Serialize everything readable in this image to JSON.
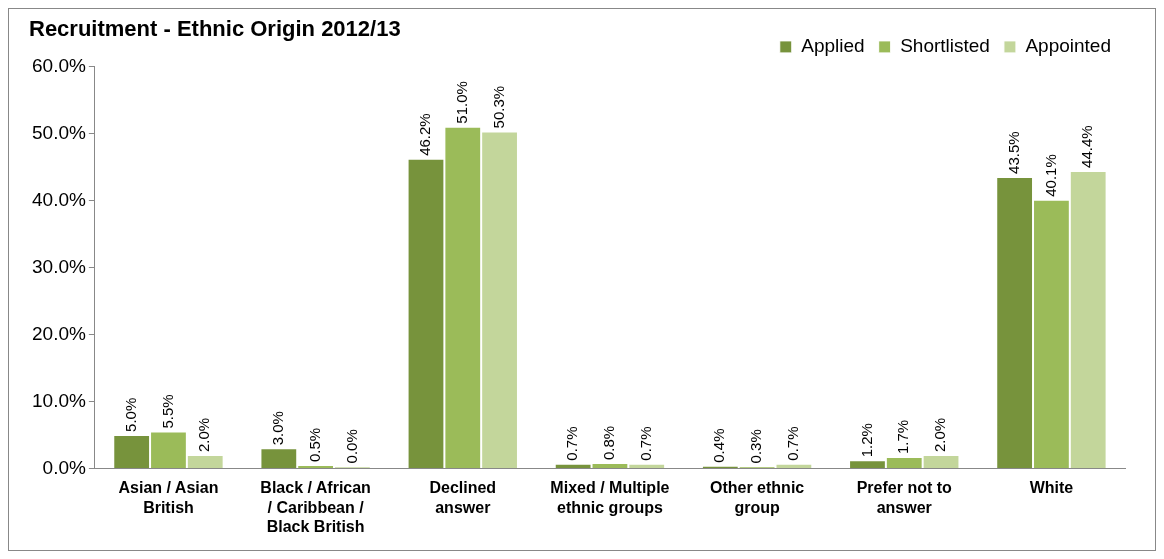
{
  "chart_data": {
    "type": "bar",
    "title": "Recruitment - Ethnic Origin 2012/13",
    "categories": [
      "Asian / Asian British",
      "Black / African / Caribbean / Black British",
      "Declined answer",
      "Mixed / Multiple ethnic groups",
      "Other ethnic group",
      "Prefer not to answer",
      "White"
    ],
    "series": [
      {
        "name": "Applied",
        "color": "#77933c",
        "values": [
          5.0,
          3.0,
          46.2,
          0.7,
          0.4,
          1.2,
          43.5
        ],
        "value_labels": [
          "5.0%",
          "3.0%",
          "46.2%",
          "0.7%",
          "0.4%",
          "1.2%",
          "43.5%"
        ]
      },
      {
        "name": "Shortlisted",
        "color": "#9bbb59",
        "values": [
          5.5,
          0.5,
          51.0,
          0.8,
          0.3,
          1.7,
          40.1
        ],
        "value_labels": [
          "5.5%",
          "0.5%",
          "51.0%",
          "0.8%",
          "0.3%",
          "1.7%",
          "40.1%"
        ]
      },
      {
        "name": "Appointed",
        "color": "#c3d69b",
        "values": [
          2.0,
          0.0,
          50.3,
          0.7,
          0.7,
          2.0,
          44.4
        ],
        "value_labels": [
          "2.0%",
          "0.0%",
          "50.3%",
          "0.7%",
          "0.7%",
          "2.0%",
          "44.4%"
        ]
      }
    ],
    "ylim": [
      0,
      60
    ],
    "yticks": [
      {
        "value": 0,
        "label": "0.0%"
      },
      {
        "value": 10,
        "label": "10.0%"
      },
      {
        "value": 20,
        "label": "20.0%"
      },
      {
        "value": 30,
        "label": "30.0%"
      },
      {
        "value": 40,
        "label": "40.0%"
      },
      {
        "value": 50,
        "label": "50.0%"
      },
      {
        "value": 60,
        "label": "60.0%"
      }
    ],
    "grid": false,
    "legend": "top right"
  }
}
